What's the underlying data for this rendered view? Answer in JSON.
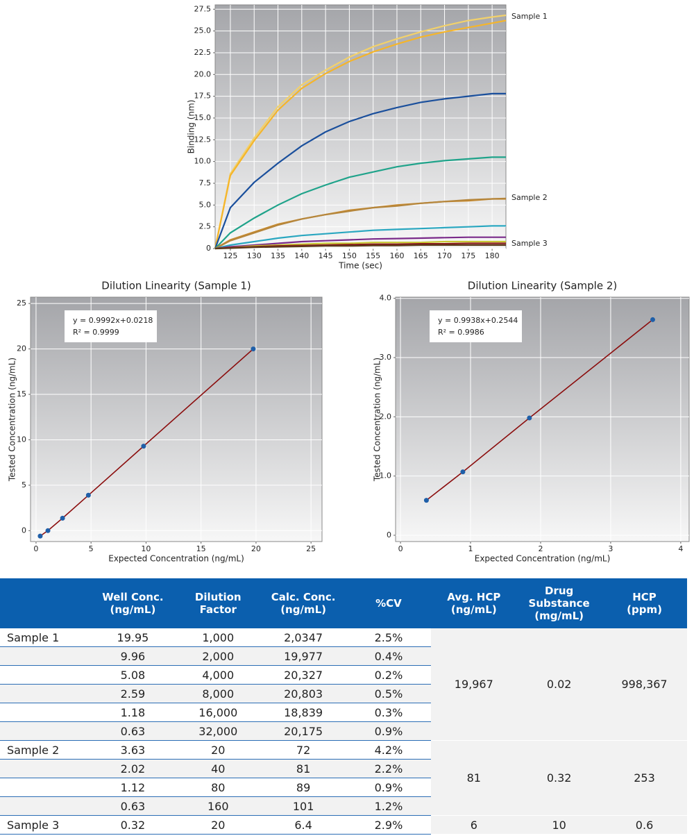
{
  "chart_data": [
    {
      "type": "line",
      "xlabel": "Time (sec)",
      "ylabel": "Binding (nm)",
      "grid": true,
      "xlim": [
        121.8,
        182.9
      ],
      "ylim": [
        0,
        28
      ],
      "xticks": [
        125,
        130,
        135,
        140,
        145,
        150,
        155,
        160,
        165,
        170,
        175,
        180
      ],
      "yticks": [
        0,
        2.5,
        {
          "value": 5,
          "label": "5.0"
        },
        7.5,
        {
          "value": 10,
          "label": "10.0"
        },
        12.5,
        {
          "value": 15,
          "label": "15.0"
        },
        17.5,
        {
          "value": 20,
          "label": "20.0"
        },
        22.5,
        {
          "value": 25,
          "label": "25.0"
        },
        27.5
      ],
      "x": [
        121.8,
        125,
        130,
        135,
        140,
        145,
        150,
        155,
        160,
        165,
        170,
        175,
        180,
        182.9
      ],
      "series": [
        {
          "color": "#f2d16b",
          "values": [
            0,
            8.6,
            12.7,
            16.3,
            18.8,
            20.5,
            22.0,
            23.2,
            24.1,
            24.9,
            25.6,
            26.2,
            26.6,
            26.8
          ]
        },
        {
          "color": "#f5b52a",
          "values": [
            0,
            8.4,
            12.4,
            15.9,
            18.4,
            20.1,
            21.5,
            22.6,
            23.5,
            24.3,
            24.9,
            25.4,
            25.9,
            26.2
          ]
        },
        {
          "color": "#1a4f9c",
          "values": [
            0,
            4.7,
            7.6,
            9.8,
            11.8,
            13.4,
            14.6,
            15.5,
            16.2,
            16.8,
            17.2,
            17.5,
            17.8,
            17.8
          ]
        },
        {
          "color": "#1fa38a",
          "values": [
            0,
            1.8,
            3.5,
            5.0,
            6.3,
            7.3,
            8.2,
            8.8,
            9.4,
            9.8,
            10.1,
            10.3,
            10.5,
            10.5
          ]
        },
        {
          "color": "#c98a2c",
          "values": [
            0,
            1.0,
            1.9,
            2.8,
            3.4,
            3.9,
            4.4,
            4.7,
            5.0,
            5.2,
            5.4,
            5.5,
            5.7,
            5.7
          ]
        },
        {
          "color": "#b5863c",
          "values": [
            0,
            0.9,
            1.8,
            2.7,
            3.4,
            3.9,
            4.3,
            4.7,
            4.9,
            5.2,
            5.4,
            5.6,
            5.7,
            5.75
          ]
        },
        {
          "color": "#2aa7c0",
          "values": [
            0,
            0.4,
            0.8,
            1.2,
            1.5,
            1.7,
            1.9,
            2.1,
            2.2,
            2.3,
            2.4,
            2.5,
            2.6,
            2.6
          ]
        },
        {
          "color": "#7a2a8a",
          "values": [
            0,
            0.2,
            0.4,
            0.6,
            0.8,
            0.9,
            1.0,
            1.1,
            1.15,
            1.2,
            1.25,
            1.3,
            1.3,
            1.3
          ]
        },
        {
          "color": "#c8c832",
          "values": [
            0,
            0.1,
            0.3,
            0.4,
            0.5,
            0.6,
            0.6,
            0.7,
            0.7,
            0.7,
            0.8,
            0.8,
            0.8,
            0.8
          ]
        },
        {
          "color": "#8b1a1a",
          "values": [
            0,
            0.1,
            0.2,
            0.3,
            0.35,
            0.4,
            0.45,
            0.5,
            0.5,
            0.55,
            0.55,
            0.6,
            0.6,
            0.6
          ]
        },
        {
          "color": "#5a3a1a",
          "values": [
            0,
            0.05,
            0.15,
            0.2,
            0.25,
            0.3,
            0.3,
            0.35,
            0.35,
            0.4,
            0.4,
            0.4,
            0.4,
            0.4
          ]
        }
      ],
      "annotations": [
        "Sample 1",
        "Sample 2",
        "Sample 3"
      ]
    },
    {
      "type": "scatter",
      "title": "Dilution Linearity (Sample 1)",
      "xlabel": "Expected Concentration (ng/mL)",
      "ylabel": "Tested Concentration (ng/mL)",
      "grid": true,
      "xlim": [
        -0.5,
        26
      ],
      "ylim": [
        -1.2,
        25.7
      ],
      "xticks": [
        0,
        5,
        10,
        15,
        20,
        25
      ],
      "yticks": [
        0,
        5,
        10,
        15,
        20,
        25
      ],
      "x": [
        19.75,
        9.78,
        4.76,
        2.41,
        1.08,
        0.38
      ],
      "series": [
        {
          "color": "#1f5fa8",
          "line_color": "#8b0d0d",
          "values": [
            20.0,
            9.3,
            3.9,
            1.37,
            0.0,
            -0.6
          ]
        }
      ],
      "annotations": [
        "y = 0.9992x+0.0218",
        "R² = 0.9999"
      ]
    },
    {
      "type": "scatter",
      "title": "Dilution Linearity (Sample 2)",
      "xlabel": "Expected Concentration (ng/mL)",
      "ylabel": "Tested Concentration (ng/mL)",
      "grid": true,
      "xlim": [
        -0.07,
        4.12
      ],
      "ylim": [
        -0.106,
        4.02
      ],
      "xticks": [
        0,
        1,
        2,
        3,
        4
      ],
      "yticks": [
        0,
        {
          "value": 1,
          "label": "1.0"
        },
        {
          "value": 2,
          "label": "2.0"
        },
        {
          "value": 3,
          "label": "3.0"
        },
        {
          "value": 4,
          "label": "4.0"
        }
      ],
      "x": [
        0.37,
        0.89,
        1.84,
        3.6
      ],
      "series": [
        {
          "color": "#1f5fa8",
          "line_color": "#8b0d0d",
          "values": [
            0.59,
            1.07,
            1.98,
            3.64
          ]
        }
      ],
      "annotations": [
        "y = 0.9938x+0.2544",
        "R² = 0.9986"
      ]
    }
  ],
  "table": {
    "header": [
      "Well Conc.\n(ng/mL)",
      "Dilution Factor",
      "Calc. Conc.\n(ng/mL)",
      "%CV",
      "Avg. HCP\n(ng/mL)",
      "Drug\nSubstance\n(mg/mL)",
      "HCP\n(ppm)"
    ],
    "groups": [
      {
        "label": "Sample 1",
        "rows": [
          [
            "19.95",
            "1,000",
            "2,0347",
            "2.5%"
          ],
          [
            "9.96",
            "2,000",
            "19,977",
            "0.4%"
          ],
          [
            "5.08",
            "4,000",
            "20,327",
            "0.2%"
          ],
          [
            "2.59",
            "8,000",
            "20,803",
            "0.5%"
          ],
          [
            "1.18",
            "16,000",
            "18,839",
            "0.3%"
          ],
          [
            "0.63",
            "32,000",
            "20,175",
            "0.9%"
          ]
        ],
        "summary": [
          "19,967",
          "0.02",
          "998,367"
        ]
      },
      {
        "label": "Sample 2",
        "rows": [
          [
            "3.63",
            "20",
            "72",
            "4.2%"
          ],
          [
            "2.02",
            "40",
            "81",
            "2.2%"
          ],
          [
            "1.12",
            "80",
            "89",
            "0.9%"
          ],
          [
            "0.63",
            "160",
            "101",
            "1.2%"
          ]
        ],
        "summary": [
          "81",
          "0.32",
          "253"
        ]
      },
      {
        "label": "Sample 3",
        "rows": [
          [
            "0.32",
            "20",
            "6.4",
            "2.9%"
          ]
        ],
        "summary": [
          "6",
          "10",
          "0.6"
        ]
      }
    ]
  }
}
